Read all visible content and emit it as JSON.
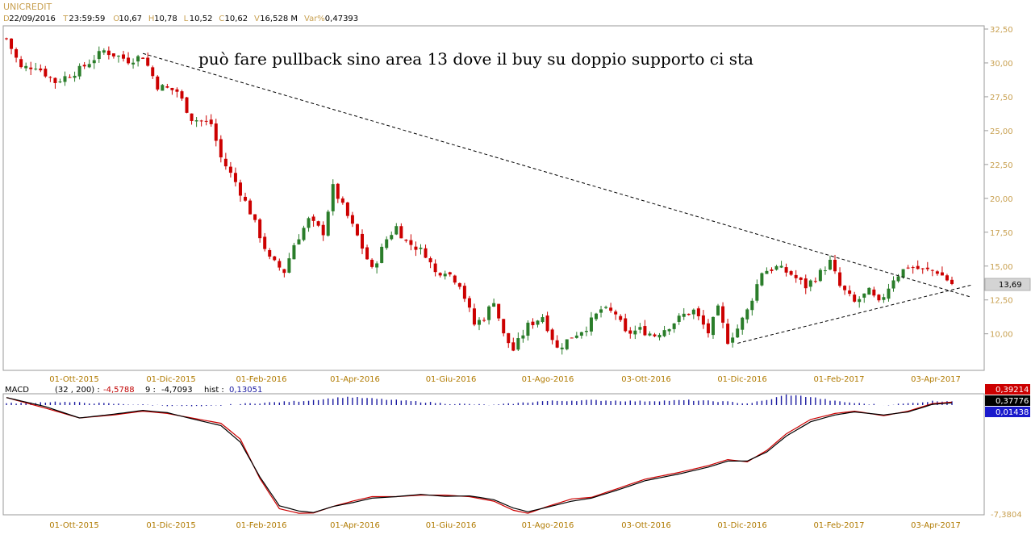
{
  "header": {
    "symbol": "UNICREDIT",
    "info": [
      {
        "k": "D",
        "v": "22/09/2016"
      },
      {
        "k": "T",
        "v": "23:59:59"
      },
      {
        "k": "O",
        "v": "10,67"
      },
      {
        "k": "H",
        "v": "10,78"
      },
      {
        "k": "L",
        "v": "10,52"
      },
      {
        "k": "C",
        "v": "10,62"
      },
      {
        "k": "V",
        "v": "16,528 M"
      },
      {
        "k": "Var%",
        "v": "0,47393"
      }
    ]
  },
  "annotation": "può fare pullback sino area 13 dove il buy su doppio supporto ci sta",
  "colors": {
    "up": "#2a7d2a",
    "down": "#cc0000",
    "axis_text": "#c8a050",
    "date_text": "#b07a00",
    "macd_line": "#000000",
    "signal_line": "#cc0000",
    "hist": "#1a1aa0"
  },
  "chart_data": [
    {
      "type": "candlestick",
      "title": "",
      "x_ticks": [
        "01-Ott-2015",
        "01-Dic-2015",
        "01-Feb-2016",
        "01-Apr-2016",
        "01-Giu-2016",
        "01-Ago-2016",
        "03-Ott-2016",
        "01-Dic-2016",
        "01-Feb-2017",
        "03-Apr-2017"
      ],
      "y_ticks": [
        "32,50",
        "30,00",
        "27,50",
        "25,00",
        "22,50",
        "20,00",
        "17,50",
        "15,00",
        "12,50",
        "10,00"
      ],
      "ylim": [
        7.3,
        32.5
      ],
      "last_price_label": "13,69",
      "price_path": [
        [
          0,
          31.8
        ],
        [
          3,
          29.6
        ],
        [
          6,
          29.8
        ],
        [
          10,
          28.6
        ],
        [
          15,
          29.5
        ],
        [
          20,
          30.9
        ],
        [
          25,
          30.2
        ],
        [
          28,
          30.5
        ],
        [
          31,
          28.3
        ],
        [
          35,
          27.9
        ],
        [
          38,
          25.9
        ],
        [
          42,
          25.5
        ],
        [
          44,
          23.0
        ],
        [
          47,
          21.2
        ],
        [
          50,
          19.0
        ],
        [
          54,
          15.5
        ],
        [
          57,
          14.6
        ],
        [
          59,
          16.6
        ],
        [
          62,
          18.4
        ],
        [
          65,
          17.5
        ],
        [
          67,
          20.8
        ],
        [
          69,
          19.4
        ],
        [
          72,
          17.2
        ],
        [
          75,
          14.7
        ],
        [
          78,
          17.0
        ],
        [
          80,
          17.9
        ],
        [
          82,
          16.8
        ],
        [
          84,
          16.4
        ],
        [
          86,
          15.9
        ],
        [
          88,
          14.5
        ],
        [
          90,
          14.7
        ],
        [
          93,
          13.7
        ],
        [
          96,
          10.7
        ],
        [
          98,
          11.2
        ],
        [
          100,
          12.5
        ],
        [
          102,
          9.9
        ],
        [
          104,
          8.8
        ],
        [
          107,
          10.6
        ],
        [
          110,
          11.3
        ],
        [
          113,
          8.9
        ],
        [
          116,
          9.8
        ],
        [
          119,
          10.5
        ],
        [
          122,
          11.8
        ],
        [
          125,
          11.5
        ],
        [
          127,
          10.0
        ],
        [
          130,
          10.3
        ],
        [
          133,
          9.9
        ],
        [
          136,
          10.6
        ],
        [
          139,
          11.4
        ],
        [
          141,
          11.7
        ],
        [
          144,
          10.1
        ],
        [
          146,
          11.8
        ],
        [
          148,
          9.5
        ],
        [
          150,
          10.4
        ],
        [
          152,
          11.7
        ],
        [
          155,
          14.6
        ],
        [
          158,
          14.9
        ],
        [
          161,
          14.4
        ],
        [
          164,
          13.5
        ],
        [
          167,
          14.5
        ],
        [
          169,
          15.3
        ],
        [
          171,
          13.5
        ],
        [
          174,
          12.3
        ],
        [
          177,
          13.1
        ],
        [
          179,
          12.2
        ],
        [
          182,
          14.1
        ],
        [
          185,
          15.0
        ],
        [
          188,
          14.7
        ],
        [
          191,
          14.6
        ],
        [
          194,
          13.69
        ]
      ],
      "lines": [
        {
          "style": "dashed",
          "from": [
            28,
            30.7
          ],
          "to": [
            198,
            12.7
          ]
        },
        {
          "style": "dashed",
          "from": [
            150,
            9.3
          ],
          "to": [
            198,
            13.6
          ]
        }
      ]
    },
    {
      "type": "line",
      "title": "MACD",
      "params": "(32 , 200) :",
      "macd_value": "-4,5788",
      "signal_label": "9 :",
      "signal_value": "-4,7093",
      "hist_label": "hist :",
      "hist_value": "0,13051",
      "y_ticks": [
        "-7,3804"
      ],
      "right_values": [
        "0,39214",
        "0,37776",
        "0,01438"
      ],
      "ylim": [
        -7.4,
        0.6
      ],
      "macd": [
        [
          0,
          0.35
        ],
        [
          8,
          -0.25
        ],
        [
          15,
          -1.0
        ],
        [
          22,
          -0.75
        ],
        [
          28,
          -0.5
        ],
        [
          33,
          -0.65
        ],
        [
          38,
          -1.05
        ],
        [
          44,
          -1.5
        ],
        [
          48,
          -2.6
        ],
        [
          52,
          -4.9
        ],
        [
          56,
          -6.8
        ],
        [
          60,
          -7.15
        ],
        [
          63,
          -7.25
        ],
        [
          67,
          -6.85
        ],
        [
          71,
          -6.6
        ],
        [
          75,
          -6.3
        ],
        [
          80,
          -6.2
        ],
        [
          85,
          -6.05
        ],
        [
          90,
          -6.18
        ],
        [
          95,
          -6.15
        ],
        [
          100,
          -6.4
        ],
        [
          104,
          -6.95
        ],
        [
          107,
          -7.2
        ],
        [
          111,
          -6.9
        ],
        [
          116,
          -6.5
        ],
        [
          120,
          -6.3
        ],
        [
          126,
          -5.7
        ],
        [
          131,
          -5.15
        ],
        [
          138,
          -4.7
        ],
        [
          144,
          -4.25
        ],
        [
          148,
          -3.85
        ],
        [
          152,
          -3.85
        ],
        [
          156,
          -3.25
        ],
        [
          160,
          -2.2
        ],
        [
          165,
          -1.25
        ],
        [
          170,
          -0.8
        ],
        [
          174,
          -0.6
        ],
        [
          180,
          -0.8
        ],
        [
          185,
          -0.6
        ],
        [
          190,
          -0.1
        ],
        [
          194,
          0.0
        ]
      ],
      "signal": [
        [
          0,
          0.35
        ],
        [
          8,
          -0.35
        ],
        [
          15,
          -1.0
        ],
        [
          22,
          -0.8
        ],
        [
          28,
          -0.55
        ],
        [
          33,
          -0.7
        ],
        [
          38,
          -1.0
        ],
        [
          44,
          -1.35
        ],
        [
          48,
          -2.4
        ],
        [
          52,
          -5.0
        ],
        [
          56,
          -7.0
        ],
        [
          60,
          -7.3
        ],
        [
          63,
          -7.28
        ],
        [
          67,
          -6.85
        ],
        [
          71,
          -6.5
        ],
        [
          75,
          -6.2
        ],
        [
          80,
          -6.2
        ],
        [
          85,
          -6.1
        ],
        [
          90,
          -6.1
        ],
        [
          95,
          -6.2
        ],
        [
          100,
          -6.5
        ],
        [
          104,
          -7.1
        ],
        [
          107,
          -7.3
        ],
        [
          111,
          -6.85
        ],
        [
          116,
          -6.35
        ],
        [
          120,
          -6.25
        ],
        [
          126,
          -5.6
        ],
        [
          131,
          -5.05
        ],
        [
          138,
          -4.6
        ],
        [
          144,
          -4.15
        ],
        [
          148,
          -3.75
        ],
        [
          152,
          -3.9
        ],
        [
          156,
          -3.15
        ],
        [
          160,
          -2.05
        ],
        [
          165,
          -1.1
        ],
        [
          170,
          -0.7
        ],
        [
          174,
          -0.55
        ],
        [
          180,
          -0.85
        ],
        [
          185,
          -0.55
        ],
        [
          190,
          -0.05
        ],
        [
          194,
          0.05
        ]
      ],
      "histogram": [
        [
          0,
          0.05
        ],
        [
          10,
          0.1
        ],
        [
          20,
          0.05
        ],
        [
          30,
          0.0
        ],
        [
          40,
          -0.05
        ],
        [
          50,
          0.05
        ],
        [
          60,
          0.12
        ],
        [
          70,
          0.25
        ],
        [
          80,
          0.15
        ],
        [
          90,
          0.05
        ],
        [
          100,
          0.0
        ],
        [
          110,
          0.12
        ],
        [
          120,
          0.15
        ],
        [
          130,
          0.12
        ],
        [
          140,
          0.15
        ],
        [
          148,
          0.1
        ],
        [
          152,
          0.05
        ],
        [
          156,
          0.15
        ],
        [
          160,
          0.32
        ],
        [
          165,
          0.25
        ],
        [
          170,
          0.12
        ],
        [
          175,
          0.05
        ],
        [
          180,
          0.0
        ],
        [
          185,
          0.05
        ],
        [
          190,
          0.12
        ],
        [
          194,
          0.13
        ]
      ]
    }
  ]
}
